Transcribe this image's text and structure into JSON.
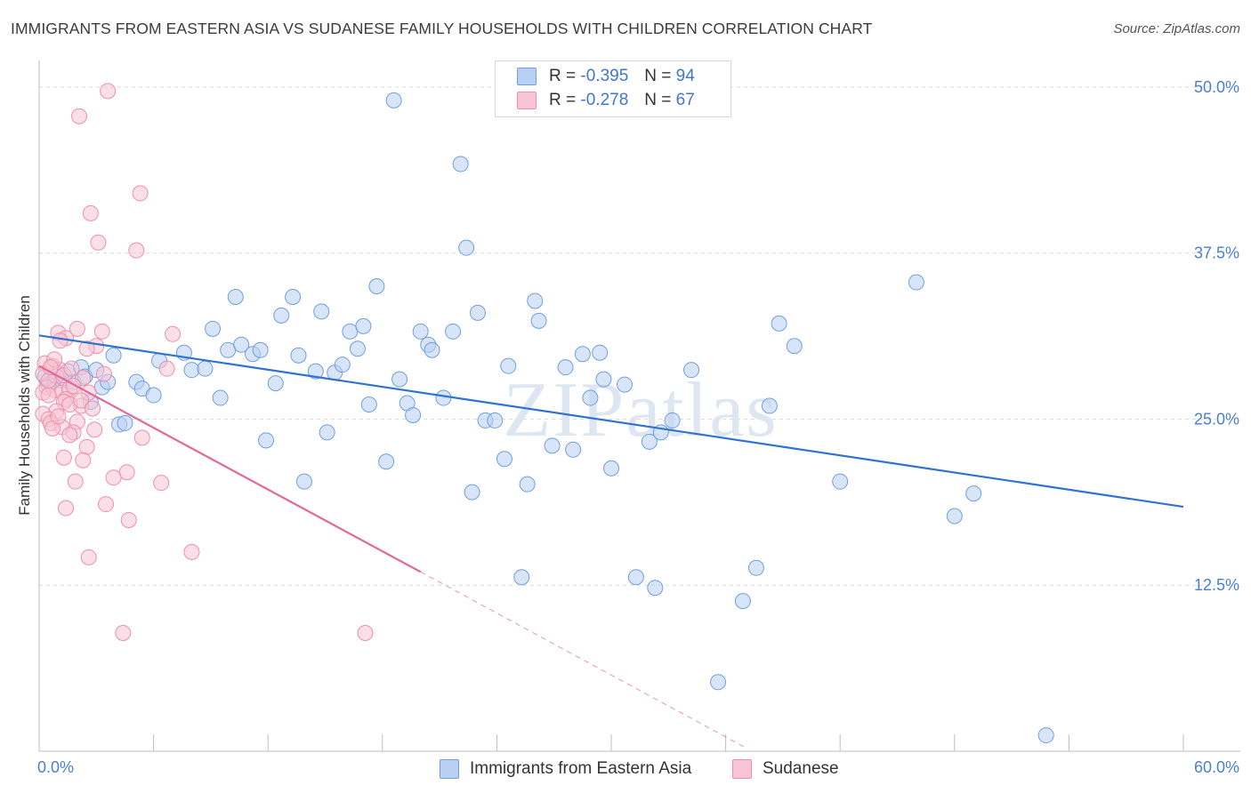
{
  "title": "IMMIGRANTS FROM EASTERN ASIA VS SUDANESE FAMILY HOUSEHOLDS WITH CHILDREN CORRELATION CHART",
  "source": "Source: ZipAtlas.com",
  "legend": {
    "r_label": "R =",
    "n_label": "N =",
    "series1": {
      "r": "-0.395",
      "n": "94"
    },
    "series2": {
      "r": "-0.278",
      "n": "67"
    }
  },
  "watermark": "ZIPatlas",
  "colors": {
    "blue_fill": "#b8cff2",
    "blue_stroke": "#6f9fe0",
    "blue_line": "#2f73d2",
    "pink_fill": "#f7c4d4",
    "pink_stroke": "#ec8fae",
    "pink_line": "#e06a95"
  },
  "chart_data": {
    "type": "scatter",
    "title": "IMMIGRANTS FROM EASTERN ASIA VS SUDANESE FAMILY HOUSEHOLDS WITH CHILDREN CORRELATION CHART",
    "xlabel": "",
    "ylabel": "Family Households with Children",
    "xlim": [
      0,
      60
    ],
    "ylim": [
      0,
      52
    ],
    "x_tick_labels": [
      "0.0%",
      "60.0%"
    ],
    "y_ticks": [
      12.5,
      25.0,
      37.5,
      50.0
    ],
    "y_tick_labels": [
      "12.5%",
      "25.0%",
      "37.5%",
      "50.0%"
    ],
    "grid": true,
    "series": [
      {
        "name": "Immigrants from Eastern Asia",
        "trend": {
          "x": [
            0,
            60
          ],
          "y": [
            31.3,
            18.4
          ]
        },
        "points": [
          [
            0.3,
            28.2
          ],
          [
            0.5,
            27.6
          ],
          [
            0.8,
            28.0
          ],
          [
            1.0,
            28.4
          ],
          [
            1.2,
            27.9
          ],
          [
            1.5,
            28.6
          ],
          [
            1.8,
            27.8
          ],
          [
            2.2,
            28.9
          ],
          [
            2.4,
            28.2
          ],
          [
            2.7,
            26.3
          ],
          [
            3.0,
            28.7
          ],
          [
            3.3,
            27.4
          ],
          [
            3.6,
            27.8
          ],
          [
            3.9,
            29.8
          ],
          [
            4.2,
            24.6
          ],
          [
            4.5,
            24.7
          ],
          [
            5.1,
            27.8
          ],
          [
            5.4,
            27.3
          ],
          [
            6.0,
            26.8
          ],
          [
            6.3,
            29.4
          ],
          [
            7.6,
            30.0
          ],
          [
            8.0,
            28.7
          ],
          [
            8.7,
            28.8
          ],
          [
            9.1,
            31.8
          ],
          [
            9.5,
            26.6
          ],
          [
            9.9,
            30.2
          ],
          [
            10.3,
            34.2
          ],
          [
            10.6,
            30.6
          ],
          [
            11.2,
            29.9
          ],
          [
            11.6,
            30.2
          ],
          [
            11.9,
            23.4
          ],
          [
            12.4,
            27.7
          ],
          [
            12.7,
            32.8
          ],
          [
            13.3,
            34.2
          ],
          [
            13.6,
            29.8
          ],
          [
            13.9,
            20.3
          ],
          [
            14.5,
            28.6
          ],
          [
            14.8,
            33.1
          ],
          [
            15.1,
            24.0
          ],
          [
            15.5,
            28.5
          ],
          [
            15.9,
            29.1
          ],
          [
            16.3,
            31.6
          ],
          [
            16.7,
            30.3
          ],
          [
            17.0,
            32.0
          ],
          [
            17.3,
            26.1
          ],
          [
            17.7,
            35.0
          ],
          [
            18.2,
            21.8
          ],
          [
            18.6,
            49.0
          ],
          [
            18.9,
            28.0
          ],
          [
            19.3,
            26.2
          ],
          [
            19.6,
            25.3
          ],
          [
            20.0,
            31.6
          ],
          [
            20.4,
            30.6
          ],
          [
            20.6,
            30.2
          ],
          [
            21.2,
            26.6
          ],
          [
            21.7,
            31.6
          ],
          [
            22.1,
            44.2
          ],
          [
            22.4,
            37.9
          ],
          [
            22.7,
            19.5
          ],
          [
            23.0,
            33.0
          ],
          [
            23.4,
            24.9
          ],
          [
            23.9,
            24.9
          ],
          [
            24.4,
            22.0
          ],
          [
            24.6,
            29.0
          ],
          [
            25.3,
            13.1
          ],
          [
            25.6,
            20.1
          ],
          [
            26.0,
            33.9
          ],
          [
            26.2,
            32.4
          ],
          [
            26.9,
            23.0
          ],
          [
            27.6,
            28.9
          ],
          [
            28.0,
            22.7
          ],
          [
            28.5,
            29.9
          ],
          [
            28.9,
            26.6
          ],
          [
            29.4,
            30.0
          ],
          [
            29.6,
            28.0
          ],
          [
            30.0,
            21.3
          ],
          [
            30.7,
            27.6
          ],
          [
            31.3,
            13.1
          ],
          [
            32.0,
            23.3
          ],
          [
            32.3,
            12.3
          ],
          [
            32.6,
            24.0
          ],
          [
            33.2,
            24.9
          ],
          [
            34.2,
            28.7
          ],
          [
            35.6,
            5.2
          ],
          [
            36.9,
            11.3
          ],
          [
            37.6,
            13.8
          ],
          [
            38.3,
            26.0
          ],
          [
            38.8,
            32.2
          ],
          [
            39.6,
            30.5
          ],
          [
            42.0,
            20.3
          ],
          [
            46.0,
            35.3
          ],
          [
            48.0,
            17.7
          ],
          [
            49.0,
            19.4
          ],
          [
            52.8,
            1.2
          ]
        ]
      },
      {
        "name": "Sudanese",
        "trend": {
          "x": [
            0,
            20
          ],
          "y": [
            29.0,
            13.5
          ]
        },
        "trend_dashed": {
          "x": [
            20,
            37
          ],
          "y": [
            13.5,
            0.3
          ]
        },
        "points": [
          [
            3.6,
            49.7
          ],
          [
            2.1,
            47.8
          ],
          [
            5.3,
            42.0
          ],
          [
            2.7,
            40.5
          ],
          [
            3.1,
            38.3
          ],
          [
            5.1,
            37.7
          ],
          [
            3.3,
            31.6
          ],
          [
            7.0,
            31.4
          ],
          [
            2.0,
            31.8
          ],
          [
            1.0,
            31.5
          ],
          [
            1.4,
            31.1
          ],
          [
            1.1,
            30.9
          ],
          [
            3.0,
            30.5
          ],
          [
            2.5,
            30.3
          ],
          [
            0.3,
            29.2
          ],
          [
            0.7,
            29.0
          ],
          [
            1.1,
            28.7
          ],
          [
            0.2,
            28.4
          ],
          [
            0.9,
            28.2
          ],
          [
            1.3,
            28.3
          ],
          [
            1.7,
            28.8
          ],
          [
            2.3,
            28.1
          ],
          [
            6.7,
            28.8
          ],
          [
            0.4,
            27.4
          ],
          [
            0.8,
            27.2
          ],
          [
            1.2,
            27.0
          ],
          [
            1.6,
            27.3
          ],
          [
            0.2,
            27.0
          ],
          [
            0.5,
            26.8
          ],
          [
            1.4,
            26.5
          ],
          [
            2.2,
            26.0
          ],
          [
            1.3,
            26.3
          ],
          [
            1.6,
            26.1
          ],
          [
            0.9,
            25.6
          ],
          [
            0.2,
            25.4
          ],
          [
            0.5,
            25.0
          ],
          [
            0.6,
            24.7
          ],
          [
            2.0,
            24.8
          ],
          [
            1.2,
            24.4
          ],
          [
            2.9,
            24.2
          ],
          [
            1.8,
            24.0
          ],
          [
            0.7,
            24.3
          ],
          [
            1.6,
            23.8
          ],
          [
            5.4,
            23.6
          ],
          [
            2.5,
            22.9
          ],
          [
            1.3,
            22.1
          ],
          [
            2.3,
            21.9
          ],
          [
            4.6,
            21.0
          ],
          [
            3.9,
            20.6
          ],
          [
            1.9,
            20.3
          ],
          [
            6.4,
            20.2
          ],
          [
            3.5,
            18.6
          ],
          [
            1.4,
            18.3
          ],
          [
            4.7,
            17.4
          ],
          [
            2.6,
            14.6
          ],
          [
            8.0,
            15.0
          ],
          [
            4.4,
            8.9
          ],
          [
            17.1,
            8.9
          ],
          [
            0.5,
            27.9
          ],
          [
            0.8,
            29.5
          ],
          [
            1.8,
            27.5
          ],
          [
            2.6,
            27.0
          ],
          [
            3.4,
            28.4
          ],
          [
            2.2,
            26.4
          ],
          [
            1.0,
            25.2
          ],
          [
            2.8,
            25.8
          ],
          [
            0.6,
            28.9
          ]
        ]
      }
    ]
  },
  "bottom_legend": {
    "item1": "Immigrants from Eastern Asia",
    "item2": "Sudanese"
  }
}
